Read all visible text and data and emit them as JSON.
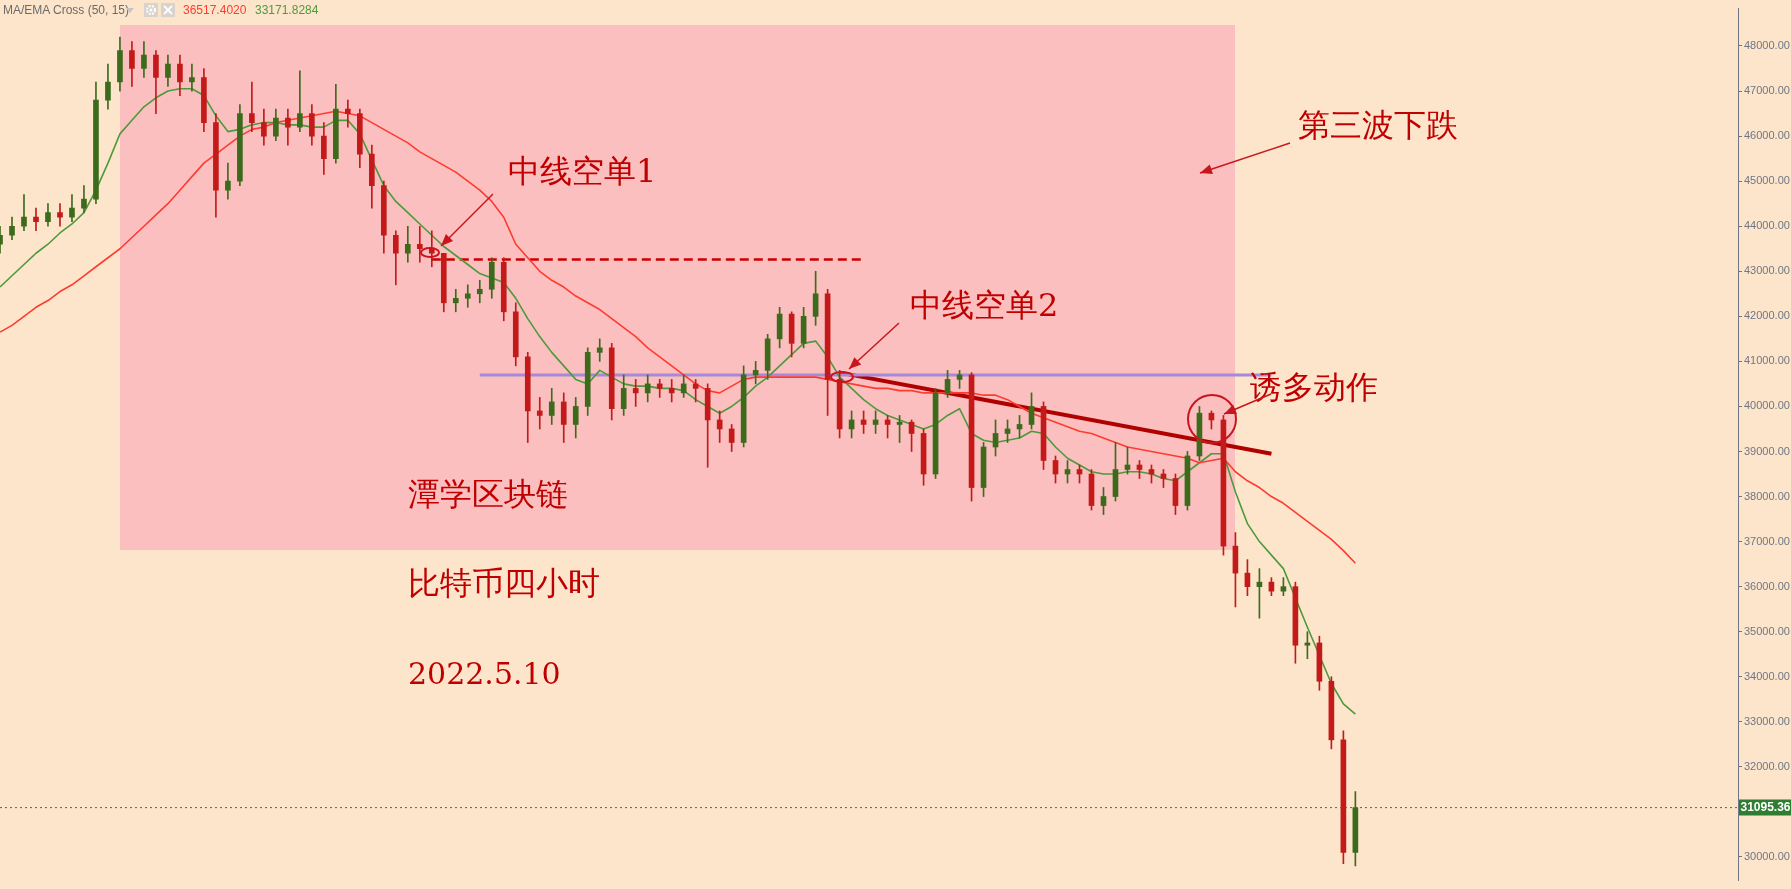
{
  "chart_data": {
    "type": "candlestick",
    "title": "MA/EMA Cross (50, 15)",
    "categories": [
      null,
      null,
      null,
      null,
      null,
      null,
      null,
      null,
      null,
      null,
      null,
      null,
      null,
      null,
      null,
      null,
      null,
      null,
      null,
      null,
      null,
      null,
      null,
      null,
      null,
      null,
      null,
      null,
      null,
      null,
      null,
      null,
      null,
      null,
      null,
      null,
      null,
      null,
      null,
      null,
      null,
      null,
      null,
      null,
      null,
      null,
      null,
      null,
      null,
      null,
      null,
      null,
      null,
      null,
      null,
      null,
      null,
      null,
      null,
      null,
      null,
      null,
      null,
      null,
      null,
      null,
      null,
      null,
      null,
      null,
      null,
      null,
      null,
      null,
      null,
      null,
      null,
      null,
      null,
      null,
      null,
      null,
      null,
      null,
      null,
      null,
      null,
      null,
      null,
      null,
      null,
      null,
      null,
      null,
      null,
      null,
      null,
      null,
      null,
      null,
      null,
      null,
      null,
      null,
      null,
      null,
      null,
      null,
      null,
      null,
      null,
      null,
      null,
      null
    ],
    "ohlc": [
      [
        43600,
        44000,
        43400,
        43800
      ],
      [
        43800,
        44200,
        43700,
        44000
      ],
      [
        44000,
        44700,
        43900,
        44200
      ],
      [
        44200,
        44400,
        43900,
        44100
      ],
      [
        44100,
        44500,
        44000,
        44300
      ],
      [
        44300,
        44500,
        44000,
        44200
      ],
      [
        44200,
        44700,
        44100,
        44400
      ],
      [
        44400,
        44900,
        44300,
        44600
      ],
      [
        44600,
        47200,
        44500,
        46800
      ],
      [
        46800,
        47600,
        46600,
        47200
      ],
      [
        47200,
        48200,
        47000,
        47900
      ],
      [
        47900,
        48100,
        47100,
        47500
      ],
      [
        47500,
        48100,
        47300,
        47800
      ],
      [
        47800,
        47900,
        46500,
        47300
      ],
      [
        47300,
        47800,
        47100,
        47600
      ],
      [
        47600,
        47800,
        46900,
        47200
      ],
      [
        47200,
        47600,
        47000,
        47300
      ],
      [
        47300,
        47500,
        46100,
        46300
      ],
      [
        46300,
        46500,
        44200,
        44800
      ],
      [
        44800,
        45400,
        44600,
        45000
      ],
      [
        45000,
        46700,
        44900,
        46500
      ],
      [
        46500,
        47200,
        46100,
        46300
      ],
      [
        46300,
        46600,
        45800,
        46000
      ],
      [
        46000,
        46600,
        45900,
        46400
      ],
      [
        46400,
        46600,
        45800,
        46200
      ],
      [
        46200,
        47450,
        46100,
        46500
      ],
      [
        46500,
        46700,
        45800,
        46000
      ],
      [
        46000,
        46300,
        45150,
        45500
      ],
      [
        45500,
        47150,
        45400,
        46600
      ],
      [
        46600,
        46800,
        46200,
        46500
      ],
      [
        46500,
        46600,
        45300,
        45600
      ],
      [
        45600,
        45800,
        44400,
        44900
      ],
      [
        44900,
        45000,
        43400,
        43800
      ],
      [
        43800,
        43900,
        42700,
        43400
      ],
      [
        43400,
        44000,
        43200,
        43600
      ],
      [
        43600,
        44000,
        43200,
        43500
      ],
      [
        43500,
        43900,
        43100,
        43400
      ],
      [
        43400,
        43400,
        42100,
        42300
      ],
      [
        42300,
        42600,
        42100,
        42400
      ],
      [
        42400,
        42700,
        42200,
        42500
      ],
      [
        42500,
        42800,
        42300,
        42600
      ],
      [
        42600,
        43300,
        42400,
        43200
      ],
      [
        43200,
        43300,
        41900,
        42100
      ],
      [
        42100,
        42300,
        40900,
        41100
      ],
      [
        41100,
        41200,
        39200,
        39900
      ],
      [
        39900,
        40200,
        39500,
        39800
      ],
      [
        39800,
        40400,
        39600,
        40100
      ],
      [
        40100,
        40300,
        39200,
        39600
      ],
      [
        39600,
        40200,
        39300,
        40000
      ],
      [
        40000,
        41300,
        39800,
        41200
      ],
      [
        41200,
        41500,
        41000,
        41300
      ],
      [
        41300,
        41400,
        39700,
        39950
      ],
      [
        39950,
        40700,
        39800,
        40400
      ],
      [
        40400,
        40600,
        40000,
        40300
      ],
      [
        40300,
        40700,
        40100,
        40500
      ],
      [
        40500,
        40600,
        40200,
        40400
      ],
      [
        40400,
        40600,
        40100,
        40300
      ],
      [
        40300,
        40700,
        40200,
        40500
      ],
      [
        40500,
        40600,
        40100,
        40400
      ],
      [
        40400,
        40500,
        38650,
        39700
      ],
      [
        39700,
        39900,
        39200,
        39500
      ],
      [
        39500,
        39600,
        39000,
        39200
      ],
      [
        39200,
        40900,
        39100,
        40700
      ],
      [
        40700,
        41000,
        40500,
        40800
      ],
      [
        40800,
        41600,
        40600,
        41500
      ],
      [
        41500,
        42200,
        41300,
        42050
      ],
      [
        42050,
        42100,
        41100,
        41400
      ],
      [
        41400,
        42200,
        41300,
        42000
      ],
      [
        42000,
        43000,
        41800,
        42500
      ],
      [
        42500,
        42600,
        39800,
        40600
      ],
      [
        40600,
        40800,
        39300,
        39500
      ],
      [
        39500,
        39900,
        39300,
        39700
      ],
      [
        39700,
        39900,
        39400,
        39600
      ],
      [
        39600,
        39900,
        39400,
        39700
      ],
      [
        39700,
        39800,
        39300,
        39600
      ],
      [
        39600,
        39800,
        39200,
        39650
      ],
      [
        39650,
        39700,
        39000,
        39400
      ],
      [
        39400,
        39500,
        38250,
        38500
      ],
      [
        38500,
        40400,
        38400,
        40300
      ],
      [
        40300,
        40800,
        40200,
        40600
      ],
      [
        40600,
        40800,
        40400,
        40700
      ],
      [
        40700,
        40750,
        37900,
        38200
      ],
      [
        38200,
        39200,
        38000,
        39100
      ],
      [
        39100,
        39700,
        38900,
        39400
      ],
      [
        39400,
        39700,
        39200,
        39500
      ],
      [
        39500,
        39800,
        39300,
        39600
      ],
      [
        39600,
        40300,
        39500,
        40000
      ],
      [
        40000,
        40100,
        38600,
        38800
      ],
      [
        38800,
        38900,
        38300,
        38500
      ],
      [
        38500,
        38800,
        38300,
        38600
      ],
      [
        38600,
        38700,
        38300,
        38500
      ],
      [
        38500,
        38600,
        37700,
        37800
      ],
      [
        37800,
        38200,
        37600,
        38000
      ],
      [
        38000,
        39200,
        37900,
        38600
      ],
      [
        38600,
        39100,
        38500,
        38700
      ],
      [
        38700,
        38800,
        38400,
        38600
      ],
      [
        38600,
        38700,
        38300,
        38500
      ],
      [
        38500,
        38600,
        38200,
        38400
      ],
      [
        38400,
        38500,
        37600,
        37800
      ],
      [
        37800,
        39000,
        37700,
        38900
      ],
      [
        38900,
        40000,
        38800,
        39850
      ],
      [
        39850,
        39900,
        39500,
        39700
      ],
      [
        39700,
        39800,
        36700,
        36900
      ],
      [
        36900,
        37200,
        35550,
        36300
      ],
      [
        36300,
        36600,
        35800,
        36000
      ],
      [
        36000,
        36400,
        35300,
        36100
      ],
      [
        36100,
        36200,
        35800,
        35900
      ],
      [
        35900,
        36200,
        35800,
        36000
      ],
      [
        36000,
        36100,
        34300,
        34700
      ],
      [
        34700,
        35000,
        34400,
        34750
      ],
      [
        34750,
        34900,
        33700,
        33900
      ],
      [
        33900,
        34000,
        32400,
        32600
      ],
      [
        32600,
        32800,
        29850,
        30100
      ],
      [
        30100,
        31450,
        29800,
        31095.36
      ]
    ],
    "colors": [
      "#3d6b1c",
      "#3d6b1c",
      "#3d6b1c",
      "#c41a1a",
      "#3d6b1c",
      "#c41a1a",
      "#3d6b1c",
      "#3d6b1c",
      "#3d6b1c",
      "#3d6b1c",
      "#3d6b1c",
      "#c41a1a",
      "#3d6b1c",
      "#c41a1a",
      "#3d6b1c",
      "#c41a1a",
      "#3d6b1c",
      "#c41a1a",
      "#c41a1a",
      "#3d6b1c",
      "#3d6b1c",
      "#c41a1a",
      "#c41a1a",
      "#3d6b1c",
      "#c41a1a",
      "#3d6b1c",
      "#c41a1a",
      "#c41a1a",
      "#3d6b1c",
      "#c41a1a",
      "#c41a1a",
      "#c41a1a",
      "#c41a1a",
      "#c41a1a",
      "#3d6b1c",
      "#c41a1a",
      "#c41a1a",
      "#c41a1a",
      "#3d6b1c",
      "#3d6b1c",
      "#3d6b1c",
      "#3d6b1c",
      "#c41a1a",
      "#c41a1a",
      "#c41a1a",
      "#c41a1a",
      "#3d6b1c",
      "#c41a1a",
      "#3d6b1c",
      "#3d6b1c",
      "#3d6b1c",
      "#c41a1a",
      "#3d6b1c",
      "#c41a1a",
      "#3d6b1c",
      "#c41a1a",
      "#c41a1a",
      "#3d6b1c",
      "#c41a1a",
      "#c41a1a",
      "#c41a1a",
      "#c41a1a",
      "#3d6b1c",
      "#3d6b1c",
      "#3d6b1c",
      "#3d6b1c",
      "#c41a1a",
      "#3d6b1c",
      "#3d6b1c",
      "#c41a1a",
      "#c41a1a",
      "#3d6b1c",
      "#c41a1a",
      "#3d6b1c",
      "#c41a1a",
      "#3d6b1c",
      "#c41a1a",
      "#c41a1a",
      "#3d6b1c",
      "#3d6b1c",
      "#3d6b1c",
      "#c41a1a",
      "#3d6b1c",
      "#3d6b1c",
      "#3d6b1c",
      "#3d6b1c",
      "#3d6b1c",
      "#c41a1a",
      "#c41a1a",
      "#3d6b1c",
      "#c41a1a",
      "#c41a1a",
      "#3d6b1c",
      "#3d6b1c",
      "#3d6b1c",
      "#c41a1a",
      "#c41a1a",
      "#c41a1a",
      "#c41a1a",
      "#3d6b1c",
      "#3d6b1c",
      "#c41a1a",
      "#c41a1a",
      "#c41a1a",
      "#c41a1a",
      "#3d6b1c",
      "#c41a1a",
      "#3d6b1c",
      "#c41a1a",
      "#3d6b1c",
      "#c41a1a",
      "#c41a1a",
      "#c41a1a",
      "#3d6b1c"
    ],
    "series": [
      {
        "type": "line",
        "color": "#ff3b30",
        "values": [
          41650,
          41800,
          42000,
          42200,
          42350,
          42550,
          42700,
          42900,
          43100,
          43300,
          43500,
          43750,
          44000,
          44250,
          44500,
          44800,
          45100,
          45400,
          45600,
          45800,
          46000,
          46150,
          46200,
          46300,
          46350,
          46400,
          46450,
          46500,
          46550,
          46500,
          46450,
          46300,
          46150,
          46000,
          45850,
          45650,
          45500,
          45350,
          45200,
          45000,
          44800,
          44550,
          44200,
          43600,
          43300,
          43000,
          42800,
          42650,
          42450,
          42300,
          42150,
          41950,
          41750,
          41550,
          41300,
          41100,
          40900,
          40700,
          40500,
          40350,
          40300,
          40450,
          40600,
          40650,
          40650,
          40650,
          40650,
          40650,
          40650,
          40600,
          null,
          40500,
          40450,
          40400,
          40400,
          40350,
          40350,
          40300,
          40300,
          40300,
          40300,
          40300,
          40250,
          40250,
          40150,
          40000,
          39850,
          39750,
          39650,
          39550,
          39450,
          39400,
          39300,
          39200,
          39100,
          39050,
          39000,
          38950,
          38900,
          38850,
          38750,
          38800,
          38850,
          38550,
          38350,
          38200,
          38000,
          37850,
          37650,
          37450,
          37250,
          37050,
          36800,
          36520
        ]
      },
      {
        "type": "line",
        "color": "#4c9a3c",
        "values": [
          42650,
          42900,
          43150,
          43400,
          43600,
          43850,
          44050,
          44300,
          44800,
          45400,
          46050,
          46350,
          46650,
          46850,
          47000,
          47050,
          47050,
          46900,
          46450,
          46100,
          46150,
          46250,
          46300,
          46300,
          46250,
          46250,
          46200,
          46200,
          46350,
          46350,
          46050,
          null,
          44900,
          44550,
          44300,
          44050,
          43800,
          43550,
          43350,
          43150,
          42950,
          42850,
          42750,
          42400,
          41950,
          41550,
          41200,
          40900,
          40600,
          40500,
          40800,
          40650,
          40500,
          40450,
          40450,
          40400,
          40400,
          40350,
          40150,
          40000,
          39850,
          40000,
          40200,
          40450,
          40650,
          40900,
          41150,
          41400,
          41450,
          41100,
          40650,
          40400,
          40150,
          39950,
          39800,
          39700,
          39600,
          39500,
          39600,
          39800,
          39950,
          39400,
          39250,
          39200,
          39250,
          39300,
          39450,
          39400,
          39100,
          38850,
          38700,
          38550,
          38500,
          38500,
          38550,
          38550,
          38500,
          38400,
          38350,
          38550,
          38750,
          38950,
          38950,
          38100,
          37400,
          37000,
          36700,
          36400,
          null,
          35100,
          null,
          33850,
          33400,
          33170
        ]
      },
      {
        "type": "line",
        "color": "#cc0000",
        "line_style": "dashed",
        "values": [
          null,
          null,
          null,
          null,
          null,
          null,
          null,
          null,
          null,
          null,
          null,
          null,
          null,
          null,
          null,
          null,
          null,
          null,
          null,
          null,
          null,
          null,
          null,
          null,
          null,
          null,
          null,
          null,
          null,
          null,
          null,
          null,
          null,
          null,
          null,
          null,
          43260,
          null,
          null,
          null,
          null,
          null,
          null,
          null,
          null,
          null,
          null,
          null,
          null,
          null,
          null,
          null,
          null,
          null,
          null,
          null,
          null,
          null,
          null,
          null,
          null,
          null,
          null,
          null,
          null,
          null,
          null,
          null,
          null,
          null,
          null,
          null,
          43260,
          null,
          null,
          null,
          null,
          null,
          null,
          null,
          null,
          null,
          null,
          null,
          null,
          null,
          null,
          null,
          null,
          null,
          null,
          null,
          null,
          null,
          null,
          null,
          null,
          null,
          null,
          null,
          null,
          null,
          null,
          null,
          null,
          null,
          null,
          null,
          null,
          null,
          null,
          null,
          null,
          null
        ]
      },
      {
        "type": "line",
        "color": "#a58ad8",
        "values": [
          null,
          null,
          null,
          null,
          null,
          null,
          null,
          null,
          null,
          null,
          null,
          null,
          null,
          null,
          null,
          null,
          null,
          null,
          null,
          null,
          null,
          null,
          null,
          null,
          null,
          null,
          null,
          null,
          null,
          null,
          null,
          null,
          null,
          null,
          null,
          null,
          null,
          null,
          null,
          null,
          40700,
          null,
          null,
          null,
          null,
          null,
          null,
          null,
          null,
          null,
          null,
          null,
          null,
          null,
          null,
          null,
          null,
          null,
          null,
          null,
          null,
          null,
          null,
          null,
          null,
          null,
          null,
          null,
          null,
          null,
          null,
          null,
          null,
          null,
          null,
          null,
          null,
          null,
          null,
          null,
          null,
          null,
          null,
          null,
          null,
          null,
          null,
          null,
          null,
          null,
          null,
          null,
          null,
          null,
          null,
          null,
          null,
          null,
          null,
          null,
          null,
          null,
          null,
          null,
          null,
          null,
          40700,
          null,
          null,
          null,
          null,
          null,
          null,
          null
        ]
      },
      {
        "type": "line",
        "color": "#b00000",
        "values": [
          null,
          null,
          null,
          null,
          null,
          null,
          null,
          null,
          null,
          null,
          null,
          null,
          null,
          null,
          null,
          null,
          null,
          null,
          null,
          null,
          null,
          null,
          null,
          null,
          null,
          null,
          null,
          null,
          null,
          null,
          null,
          null,
          null,
          null,
          null,
          null,
          null,
          null,
          null,
          null,
          null,
          null,
          null,
          null,
          null,
          null,
          null,
          null,
          null,
          null,
          null,
          null,
          null,
          null,
          null,
          null,
          null,
          null,
          null,
          null,
          null,
          null,
          null,
          null,
          null,
          null,
          null,
          null,
          null,
          null,
          40750,
          null,
          null,
          null,
          null,
          null,
          null,
          null,
          null,
          null,
          null,
          null,
          null,
          null,
          null,
          null,
          null,
          null,
          null,
          null,
          null,
          null,
          null,
          null,
          null,
          null,
          null,
          null,
          null,
          null,
          null,
          null,
          null,
          null,
          null,
          null,
          38950,
          null,
          null,
          null,
          null,
          null,
          null,
          null
        ]
      }
    ],
    "ylim": [
      29480,
      48830
    ],
    "yticks": [
      {
        "value": 30000,
        "label": "30000.00"
      },
      {
        "value": 32000,
        "label": "32000.00"
      },
      {
        "value": 33000,
        "label": "33000.00"
      },
      {
        "value": 34000,
        "label": "34000.00"
      },
      {
        "value": 35000,
        "label": "35000.00"
      },
      {
        "value": 36000,
        "label": "36000.00"
      },
      {
        "value": 37000,
        "label": "37000.00"
      },
      {
        "value": 38000,
        "label": "38000.00"
      },
      {
        "value": 39000,
        "label": "39000.00"
      },
      {
        "value": 40000,
        "label": "40000.00"
      },
      {
        "value": 41000,
        "label": "41000.00"
      },
      {
        "value": 42000,
        "label": "42000.00"
      },
      {
        "value": 43000,
        "label": "43000.00"
      },
      {
        "value": 44000,
        "label": "44000.00"
      },
      {
        "value": 45000,
        "label": "45000.00"
      },
      {
        "value": 46000,
        "label": "46000.00"
      },
      {
        "value": 47000,
        "label": "47000.00"
      },
      {
        "value": 48000,
        "label": "48000.00"
      }
    ],
    "ref_lines": [
      {
        "axis": "y",
        "value": 31095.36,
        "label": "31095.36",
        "color": "#2e7d32",
        "line_style": "dotted"
      }
    ],
    "annotations": [
      "中线空单1",
      "中线空单2",
      "第三波下跌",
      "诱多动作",
      "潭学区块链",
      "比特币四小时",
      "2022.5.10",
      "36517.4020",
      "33171.8284"
    ],
    "marker": "none",
    "legend": false,
    "grid": false
  }
}
